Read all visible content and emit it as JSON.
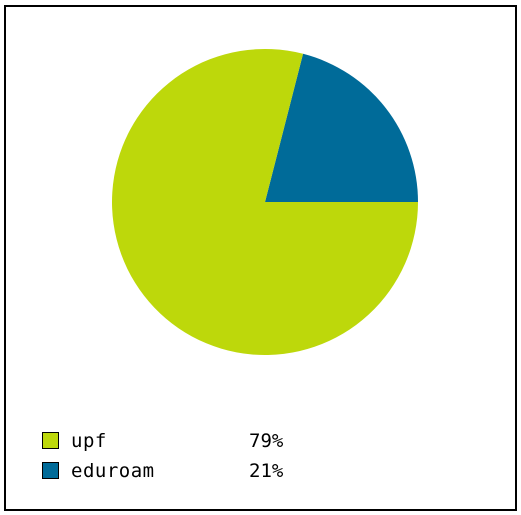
{
  "colors": {
    "upf": "#bdd80b",
    "eduroam": "#006b99",
    "border": "#000000",
    "background": "#ffffff"
  },
  "chart_data": {
    "type": "pie",
    "start_angle_deg": 0,
    "direction": "counterclockwise",
    "slices": [
      {
        "label": "eduroam",
        "value": 21,
        "display": "21%",
        "color": "#006b99"
      },
      {
        "label": "upf",
        "value": 79,
        "display": "79%",
        "color": "#bdd80b"
      }
    ],
    "legend": {
      "placement": "bottom-left",
      "entries": [
        {
          "label": "upf",
          "value": "79%",
          "color": "#bdd80b"
        },
        {
          "label": "eduroam",
          "value": "21%",
          "color": "#006b99"
        }
      ]
    }
  }
}
